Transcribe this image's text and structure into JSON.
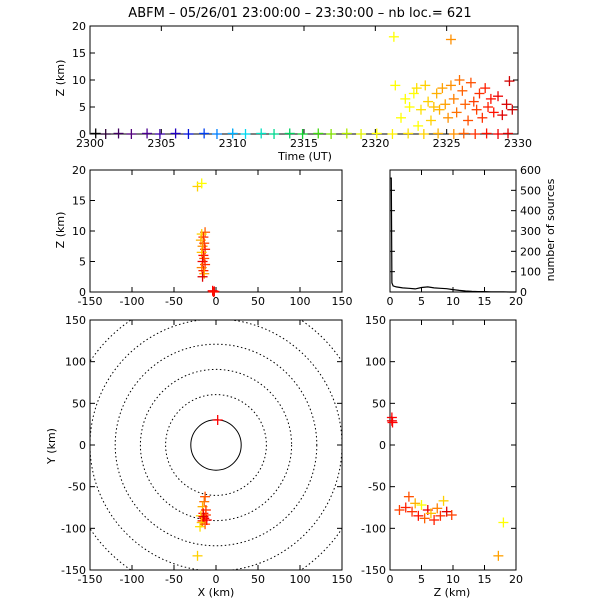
{
  "page": {
    "title": "ABFM – 05/26/01 23:00:00 – 23:30:00 – nb loc.=     621"
  },
  "panels": {
    "time_height": {
      "ylabel": "Z (km)",
      "xlabel": "Time (UT)",
      "xlim": [
        2300,
        2330
      ],
      "ylim": [
        0,
        20
      ],
      "xticks": [
        2300,
        2305,
        2310,
        2315,
        2320,
        2325,
        2330
      ],
      "yticks": [
        0,
        5,
        10,
        15,
        20
      ]
    },
    "xz": {
      "ylabel": "Z (km)",
      "xlim": [
        -150,
        150
      ],
      "ylim": [
        0,
        20
      ],
      "xticks": [
        -150,
        -100,
        -50,
        0,
        50,
        100,
        150
      ],
      "yticks": [
        0,
        5,
        10,
        15,
        20
      ]
    },
    "histogram": {
      "ylabel": "number of sources",
      "xlim": [
        0,
        20
      ],
      "ylim": [
        0,
        600
      ],
      "xticks": [
        0,
        5,
        10,
        15,
        20
      ],
      "yticks": [
        0,
        100,
        200,
        300,
        400,
        500,
        600
      ]
    },
    "plan": {
      "ylabel": "Y (km)",
      "xlabel": "X (km)",
      "xlim": [
        -150,
        150
      ],
      "ylim": [
        -150,
        150
      ],
      "xticks": [
        -150,
        -100,
        -50,
        0,
        50,
        100,
        150
      ],
      "yticks": [
        -150,
        -100,
        -50,
        0,
        50,
        100,
        150
      ],
      "range_rings_km": [
        30,
        60,
        90,
        120,
        150,
        180
      ]
    },
    "zy": {
      "xlabel": "Z (km)",
      "xlim": [
        0,
        20
      ],
      "ylim": [
        -150,
        150
      ],
      "xticks": [
        0,
        5,
        10,
        15,
        20
      ],
      "yticks": [
        -150,
        -100,
        -50,
        0,
        50,
        100,
        150
      ]
    }
  },
  "chart_data": [
    {
      "type": "scatter",
      "panel": "time_height",
      "xlabel": "Time (UT)",
      "ylabel": "Z (km)",
      "xlim": [
        2300,
        2330
      ],
      "ylim": [
        0,
        20
      ],
      "points": [
        {
          "x": 2300.4,
          "y": 0.1,
          "color": "#000000"
        },
        {
          "x": 2301.1,
          "y": 0.0,
          "color": "#2a0035"
        },
        {
          "x": 2302.0,
          "y": 0.1,
          "color": "#400060"
        },
        {
          "x": 2302.9,
          "y": 0.0,
          "color": "#50007a"
        },
        {
          "x": 2304.0,
          "y": 0.1,
          "color": "#4a008f"
        },
        {
          "x": 2304.9,
          "y": 0.0,
          "color": "#3a00a5"
        },
        {
          "x": 2306.0,
          "y": 0.1,
          "color": "#2000c0"
        },
        {
          "x": 2306.9,
          "y": 0.0,
          "color": "#0010d8"
        },
        {
          "x": 2308.0,
          "y": 0.1,
          "color": "#0040f0"
        },
        {
          "x": 2308.9,
          "y": 0.0,
          "color": "#0080ff"
        },
        {
          "x": 2310.0,
          "y": 0.1,
          "color": "#00b0ff"
        },
        {
          "x": 2310.9,
          "y": 0.0,
          "color": "#00d8f0"
        },
        {
          "x": 2312.0,
          "y": 0.1,
          "color": "#00e0c0"
        },
        {
          "x": 2312.9,
          "y": 0.0,
          "color": "#00d890"
        },
        {
          "x": 2314.0,
          "y": 0.1,
          "color": "#00d060"
        },
        {
          "x": 2314.9,
          "y": 0.0,
          "color": "#10d030"
        },
        {
          "x": 2316.0,
          "y": 0.1,
          "color": "#40d810"
        },
        {
          "x": 2316.9,
          "y": 0.0,
          "color": "#80e000"
        },
        {
          "x": 2318.0,
          "y": 0.1,
          "color": "#b0e800"
        },
        {
          "x": 2319.0,
          "y": 0.0,
          "color": "#e0f000"
        },
        {
          "x": 2320.1,
          "y": 0.1,
          "color": "#ffff00"
        },
        {
          "x": 2321.2,
          "y": 0.0,
          "color": "#fff000"
        },
        {
          "x": 2322.3,
          "y": 0.1,
          "color": "#ffe000"
        },
        {
          "x": 2323.4,
          "y": 0.0,
          "color": "#ffd000"
        },
        {
          "x": 2324.4,
          "y": 0.1,
          "color": "#ffb000"
        },
        {
          "x": 2325.5,
          "y": 0.0,
          "color": "#ff9000"
        },
        {
          "x": 2326.2,
          "y": 0.1,
          "color": "#ff6000"
        },
        {
          "x": 2327.0,
          "y": 0.0,
          "color": "#ff3000"
        },
        {
          "x": 2327.8,
          "y": 0.1,
          "color": "#ff1000"
        },
        {
          "x": 2328.6,
          "y": 0.0,
          "color": "#ee0000"
        },
        {
          "x": 2329.3,
          "y": 0.1,
          "color": "#dd0000"
        },
        {
          "x": 2321.3,
          "y": 18.0,
          "color": "#ffff00"
        },
        {
          "x": 2325.3,
          "y": 17.5,
          "color": "#ff9000"
        },
        {
          "x": 2321.4,
          "y": 9.0,
          "color": "#ffff00"
        },
        {
          "x": 2321.8,
          "y": 3.0,
          "color": "#ffff00"
        },
        {
          "x": 2322.1,
          "y": 6.5,
          "color": "#ffff00"
        },
        {
          "x": 2322.4,
          "y": 5.0,
          "color": "#ffff00"
        },
        {
          "x": 2322.7,
          "y": 7.5,
          "color": "#ffff00"
        },
        {
          "x": 2322.9,
          "y": 8.5,
          "color": "#ffe000"
        },
        {
          "x": 2323.0,
          "y": 1.5,
          "color": "#ffff00"
        },
        {
          "x": 2323.2,
          "y": 4.5,
          "color": "#ffe000"
        },
        {
          "x": 2323.5,
          "y": 9.0,
          "color": "#ffd000"
        },
        {
          "x": 2323.7,
          "y": 6.0,
          "color": "#ffd000"
        },
        {
          "x": 2323.9,
          "y": 2.5,
          "color": "#ffd000"
        },
        {
          "x": 2324.1,
          "y": 5.0,
          "color": "#ffc000"
        },
        {
          "x": 2324.3,
          "y": 7.5,
          "color": "#ffb000"
        },
        {
          "x": 2324.5,
          "y": 4.5,
          "color": "#ffb000"
        },
        {
          "x": 2324.7,
          "y": 8.5,
          "color": "#ffa000"
        },
        {
          "x": 2324.9,
          "y": 5.5,
          "color": "#ffa000"
        },
        {
          "x": 2325.1,
          "y": 3.0,
          "color": "#ff9000"
        },
        {
          "x": 2325.3,
          "y": 9.0,
          "color": "#ff9000"
        },
        {
          "x": 2325.5,
          "y": 6.5,
          "color": "#ff8000"
        },
        {
          "x": 2325.7,
          "y": 4.0,
          "color": "#ff7000"
        },
        {
          "x": 2325.9,
          "y": 10.0,
          "color": "#ff7000"
        },
        {
          "x": 2326.1,
          "y": 8.0,
          "color": "#ff6000"
        },
        {
          "x": 2326.3,
          "y": 5.5,
          "color": "#ff6000"
        },
        {
          "x": 2326.5,
          "y": 2.5,
          "color": "#ff5000"
        },
        {
          "x": 2326.7,
          "y": 9.5,
          "color": "#ff5000"
        },
        {
          "x": 2326.9,
          "y": 6.0,
          "color": "#ff4000"
        },
        {
          "x": 2327.1,
          "y": 4.5,
          "color": "#ff4000"
        },
        {
          "x": 2327.3,
          "y": 7.5,
          "color": "#ff3000"
        },
        {
          "x": 2327.5,
          "y": 3.0,
          "color": "#ff3000"
        },
        {
          "x": 2327.7,
          "y": 8.5,
          "color": "#ff2000"
        },
        {
          "x": 2327.9,
          "y": 5.0,
          "color": "#ff2000"
        },
        {
          "x": 2328.1,
          "y": 6.5,
          "color": "#ff1000"
        },
        {
          "x": 2328.3,
          "y": 4.0,
          "color": "#ff1000"
        },
        {
          "x": 2328.6,
          "y": 7.0,
          "color": "#ee0000"
        },
        {
          "x": 2328.9,
          "y": 3.5,
          "color": "#e00000"
        },
        {
          "x": 2329.2,
          "y": 5.5,
          "color": "#d80000"
        },
        {
          "x": 2329.4,
          "y": 9.8,
          "color": "#d00000"
        },
        {
          "x": 2329.6,
          "y": 4.5,
          "color": "#c80000"
        }
      ]
    },
    {
      "type": "scatter",
      "panel": "xz",
      "ylabel": "Z (km)",
      "xlim": [
        -150,
        150
      ],
      "ylim": [
        0,
        20
      ],
      "points": [
        {
          "x": -22,
          "y": 17.3,
          "color": "#ffd000"
        },
        {
          "x": -17,
          "y": 17.8,
          "color": "#ffff00"
        },
        {
          "x": -13,
          "y": 9.8,
          "color": "#ff6000"
        },
        {
          "x": -17,
          "y": 9.5,
          "color": "#ffd000"
        },
        {
          "x": -15,
          "y": 9.0,
          "color": "#ff3000"
        },
        {
          "x": -18,
          "y": 8.5,
          "color": "#ffb000"
        },
        {
          "x": -14,
          "y": 8.0,
          "color": "#ff4000"
        },
        {
          "x": -16,
          "y": 7.5,
          "color": "#ff9000"
        },
        {
          "x": -13,
          "y": 7.0,
          "color": "#ff2000"
        },
        {
          "x": -17,
          "y": 6.5,
          "color": "#ffc000"
        },
        {
          "x": -15,
          "y": 6.0,
          "color": "#ff1000"
        },
        {
          "x": -14,
          "y": 5.5,
          "color": "#ff5000"
        },
        {
          "x": -16,
          "y": 5.0,
          "color": "#ee0000"
        },
        {
          "x": -13,
          "y": 4.5,
          "color": "#ff3000"
        },
        {
          "x": -17,
          "y": 4.0,
          "color": "#ff8000"
        },
        {
          "x": -15,
          "y": 3.5,
          "color": "#ff2000"
        },
        {
          "x": -14,
          "y": 3.0,
          "color": "#ffa000"
        },
        {
          "x": -16,
          "y": 2.5,
          "color": "#dd0000"
        },
        {
          "x": -4,
          "y": 0.2,
          "color": "#ff0000"
        },
        {
          "x": -2,
          "y": 0.1,
          "color": "#ee0000"
        },
        {
          "x": -3,
          "y": 0.0,
          "color": "#ff1000"
        }
      ]
    },
    {
      "type": "line",
      "panel": "histogram",
      "ylabel": "number of sources",
      "xlim": [
        0,
        20
      ],
      "ylim": [
        0,
        600
      ],
      "x": [
        0,
        0.2,
        0.3,
        0.5,
        1,
        2,
        3,
        4,
        5,
        6,
        7,
        8,
        9,
        10,
        11,
        12,
        13,
        14,
        15,
        16,
        17,
        18,
        19,
        20
      ],
      "values": [
        560,
        560,
        45,
        30,
        25,
        20,
        18,
        15,
        22,
        25,
        20,
        18,
        16,
        12,
        8,
        5,
        3,
        2,
        2,
        1,
        1,
        1,
        0,
        0
      ]
    },
    {
      "type": "scatter",
      "panel": "plan",
      "xlabel": "X (km)",
      "ylabel": "Y (km)",
      "xlim": [
        -150,
        150
      ],
      "ylim": [
        -150,
        150
      ],
      "points": [
        {
          "x": 2,
          "y": 30,
          "color": "#ff0000"
        },
        {
          "x": -22,
          "y": -133,
          "color": "#ffd000"
        },
        {
          "x": -13,
          "y": -62,
          "color": "#ff5000"
        },
        {
          "x": -14,
          "y": -68,
          "color": "#ff7000"
        },
        {
          "x": -16,
          "y": -74,
          "color": "#ffb000"
        },
        {
          "x": -12,
          "y": -78,
          "color": "#ff3000"
        },
        {
          "x": -15,
          "y": -82,
          "color": "#ff1000"
        },
        {
          "x": -18,
          "y": -85,
          "color": "#ffd000"
        },
        {
          "x": -14,
          "y": -88,
          "color": "#ee0000"
        },
        {
          "x": -16,
          "y": -91,
          "color": "#ff2000"
        },
        {
          "x": -12,
          "y": -84,
          "color": "#ff4000"
        },
        {
          "x": -17,
          "y": -93,
          "color": "#ffc000"
        },
        {
          "x": -19,
          "y": -98,
          "color": "#ffe000"
        },
        {
          "x": -13,
          "y": -95,
          "color": "#ff6000"
        },
        {
          "x": -15,
          "y": -86,
          "color": "#dd0000"
        },
        {
          "x": -11,
          "y": -90,
          "color": "#ff0000"
        }
      ]
    },
    {
      "type": "scatter",
      "panel": "zy",
      "xlabel": "Z (km)",
      "xlim": [
        0,
        20
      ],
      "ylim": [
        -150,
        150
      ],
      "points": [
        {
          "x": 0.3,
          "y": 33,
          "color": "#ff0000"
        },
        {
          "x": 0.3,
          "y": 29,
          "color": "#ee0000"
        },
        {
          "x": 0.4,
          "y": 27,
          "color": "#ff0000"
        },
        {
          "x": 17.2,
          "y": -133,
          "color": "#ffa000"
        },
        {
          "x": 18.0,
          "y": -93,
          "color": "#ffff00"
        },
        {
          "x": 1.5,
          "y": -78,
          "color": "#ff4000"
        },
        {
          "x": 2.5,
          "y": -75,
          "color": "#ff2000"
        },
        {
          "x": 3.0,
          "y": -62,
          "color": "#ff5000"
        },
        {
          "x": 3.5,
          "y": -80,
          "color": "#ff3000"
        },
        {
          "x": 4.0,
          "y": -70,
          "color": "#ffb000"
        },
        {
          "x": 4.5,
          "y": -85,
          "color": "#ff1000"
        },
        {
          "x": 5.0,
          "y": -72,
          "color": "#ffff00"
        },
        {
          "x": 5.5,
          "y": -88,
          "color": "#ff6000"
        },
        {
          "x": 6.0,
          "y": -78,
          "color": "#ee0000"
        },
        {
          "x": 6.5,
          "y": -82,
          "color": "#ffc000"
        },
        {
          "x": 7.0,
          "y": -90,
          "color": "#ff2000"
        },
        {
          "x": 7.5,
          "y": -76,
          "color": "#ff8000"
        },
        {
          "x": 8.0,
          "y": -85,
          "color": "#ff3000"
        },
        {
          "x": 8.5,
          "y": -67,
          "color": "#ffd000"
        },
        {
          "x": 9.0,
          "y": -80,
          "color": "#dd0000"
        },
        {
          "x": 9.8,
          "y": -84,
          "color": "#ff4000"
        }
      ]
    }
  ]
}
